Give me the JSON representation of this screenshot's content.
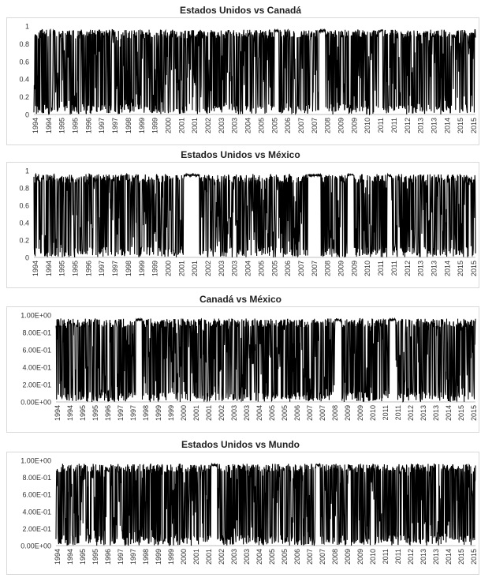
{
  "chart_data": [
    {
      "type": "line",
      "title": "Estados Unidos vs Canadá",
      "y_tick_labels": [
        "0",
        "0.2",
        "0.4",
        "0.6",
        "0.8",
        "1"
      ],
      "y_tick_values": [
        0,
        0.2,
        0.4,
        0.6,
        0.8,
        1
      ],
      "ylim": [
        0,
        1
      ],
      "x_tick_labels": [
        "1994",
        "1994",
        "1995",
        "1995",
        "1996",
        "1997",
        "1997",
        "1998",
        "1999",
        "1999",
        "2000",
        "2001",
        "2001",
        "2002",
        "2003",
        "2003",
        "2004",
        "2005",
        "2005",
        "2006",
        "2007",
        "2007",
        "2008",
        "2009",
        "2009",
        "2010",
        "2011",
        "2011",
        "2012",
        "2013",
        "2013",
        "2014",
        "2015",
        "2015"
      ],
      "series": [
        {
          "values_description_range": [
            0,
            0.96
          ],
          "color": "#000000"
        }
      ],
      "gaps": [
        [
          0.545,
          0.555
        ],
        [
          0.645,
          0.66
        ],
        [
          0.78,
          0.79
        ]
      ],
      "grid": false
    },
    {
      "type": "line",
      "title": "Estados Unidos vs México",
      "y_tick_labels": [
        "0",
        "0.2",
        "0.4",
        "0.6",
        "0.8",
        "1"
      ],
      "y_tick_values": [
        0,
        0.2,
        0.4,
        0.6,
        0.8,
        1
      ],
      "ylim": [
        0,
        1
      ],
      "x_tick_labels": [
        "1994",
        "1994",
        "1995",
        "1995",
        "1996",
        "1997",
        "1997",
        "1998",
        "1999",
        "1999",
        "2000",
        "2001",
        "2001",
        "2002",
        "2003",
        "2003",
        "2004",
        "2005",
        "2005",
        "2006",
        "2007",
        "2007",
        "2008",
        "2009",
        "2009",
        "2010",
        "2011",
        "2011",
        "2012",
        "2013",
        "2013",
        "2014",
        "2015",
        "2015"
      ],
      "series": [
        {
          "values_description_range": [
            0,
            0.96
          ],
          "color": "#000000"
        }
      ],
      "gaps": [
        [
          0.34,
          0.375
        ],
        [
          0.62,
          0.65
        ],
        [
          0.71,
          0.725
        ],
        [
          0.8,
          0.81
        ]
      ],
      "grid": false
    },
    {
      "type": "line",
      "title": "Canadá vs México",
      "y_tick_labels": [
        "0.00E+00",
        "2.00E-01",
        "4.00E-01",
        "6.00E-01",
        "8.00E-01",
        "1.00E+00"
      ],
      "y_tick_values": [
        0,
        0.2,
        0.4,
        0.6,
        0.8,
        1
      ],
      "ylim": [
        0,
        1
      ],
      "x_tick_labels": [
        "1994",
        "1994",
        "1995",
        "1995",
        "1996",
        "1997",
        "1997",
        "1998",
        "1999",
        "1999",
        "2000",
        "2001",
        "2001",
        "2002",
        "2003",
        "2003",
        "2004",
        "2005",
        "2005",
        "2006",
        "2007",
        "2007",
        "2008",
        "2009",
        "2009",
        "2010",
        "2011",
        "2011",
        "2012",
        "2013",
        "2013",
        "2014",
        "2015",
        "2015"
      ],
      "series": [
        {
          "values_description_range": [
            0,
            0.96
          ],
          "color": "#000000"
        }
      ],
      "gaps": [
        [
          0.19,
          0.205
        ],
        [
          0.665,
          0.68
        ],
        [
          0.795,
          0.81
        ]
      ],
      "grid": false
    },
    {
      "type": "line",
      "title": "Estados Unidos vs Mundo",
      "y_tick_labels": [
        "0.00E+00",
        "2.00E-01",
        "4.00E-01",
        "6.00E-01",
        "8.00E-01",
        "1.00E+00"
      ],
      "y_tick_values": [
        0,
        0.2,
        0.4,
        0.6,
        0.8,
        1
      ],
      "ylim": [
        0,
        1
      ],
      "x_tick_labels": [
        "1994",
        "1994",
        "1995",
        "1995",
        "1996",
        "1997",
        "1997",
        "1998",
        "1999",
        "1999",
        "2000",
        "2001",
        "2001",
        "2002",
        "2003",
        "2003",
        "2004",
        "2005",
        "2005",
        "2006",
        "2007",
        "2007",
        "2008",
        "2009",
        "2009",
        "2010",
        "2011",
        "2011",
        "2012",
        "2013",
        "2013",
        "2014",
        "2015",
        "2015"
      ],
      "series": [
        {
          "values_description_range": [
            0,
            0.96
          ],
          "color": "#000000"
        }
      ],
      "gaps": [
        [
          0.37,
          0.385
        ],
        [
          0.62,
          0.63
        ]
      ],
      "grid": false
    }
  ]
}
